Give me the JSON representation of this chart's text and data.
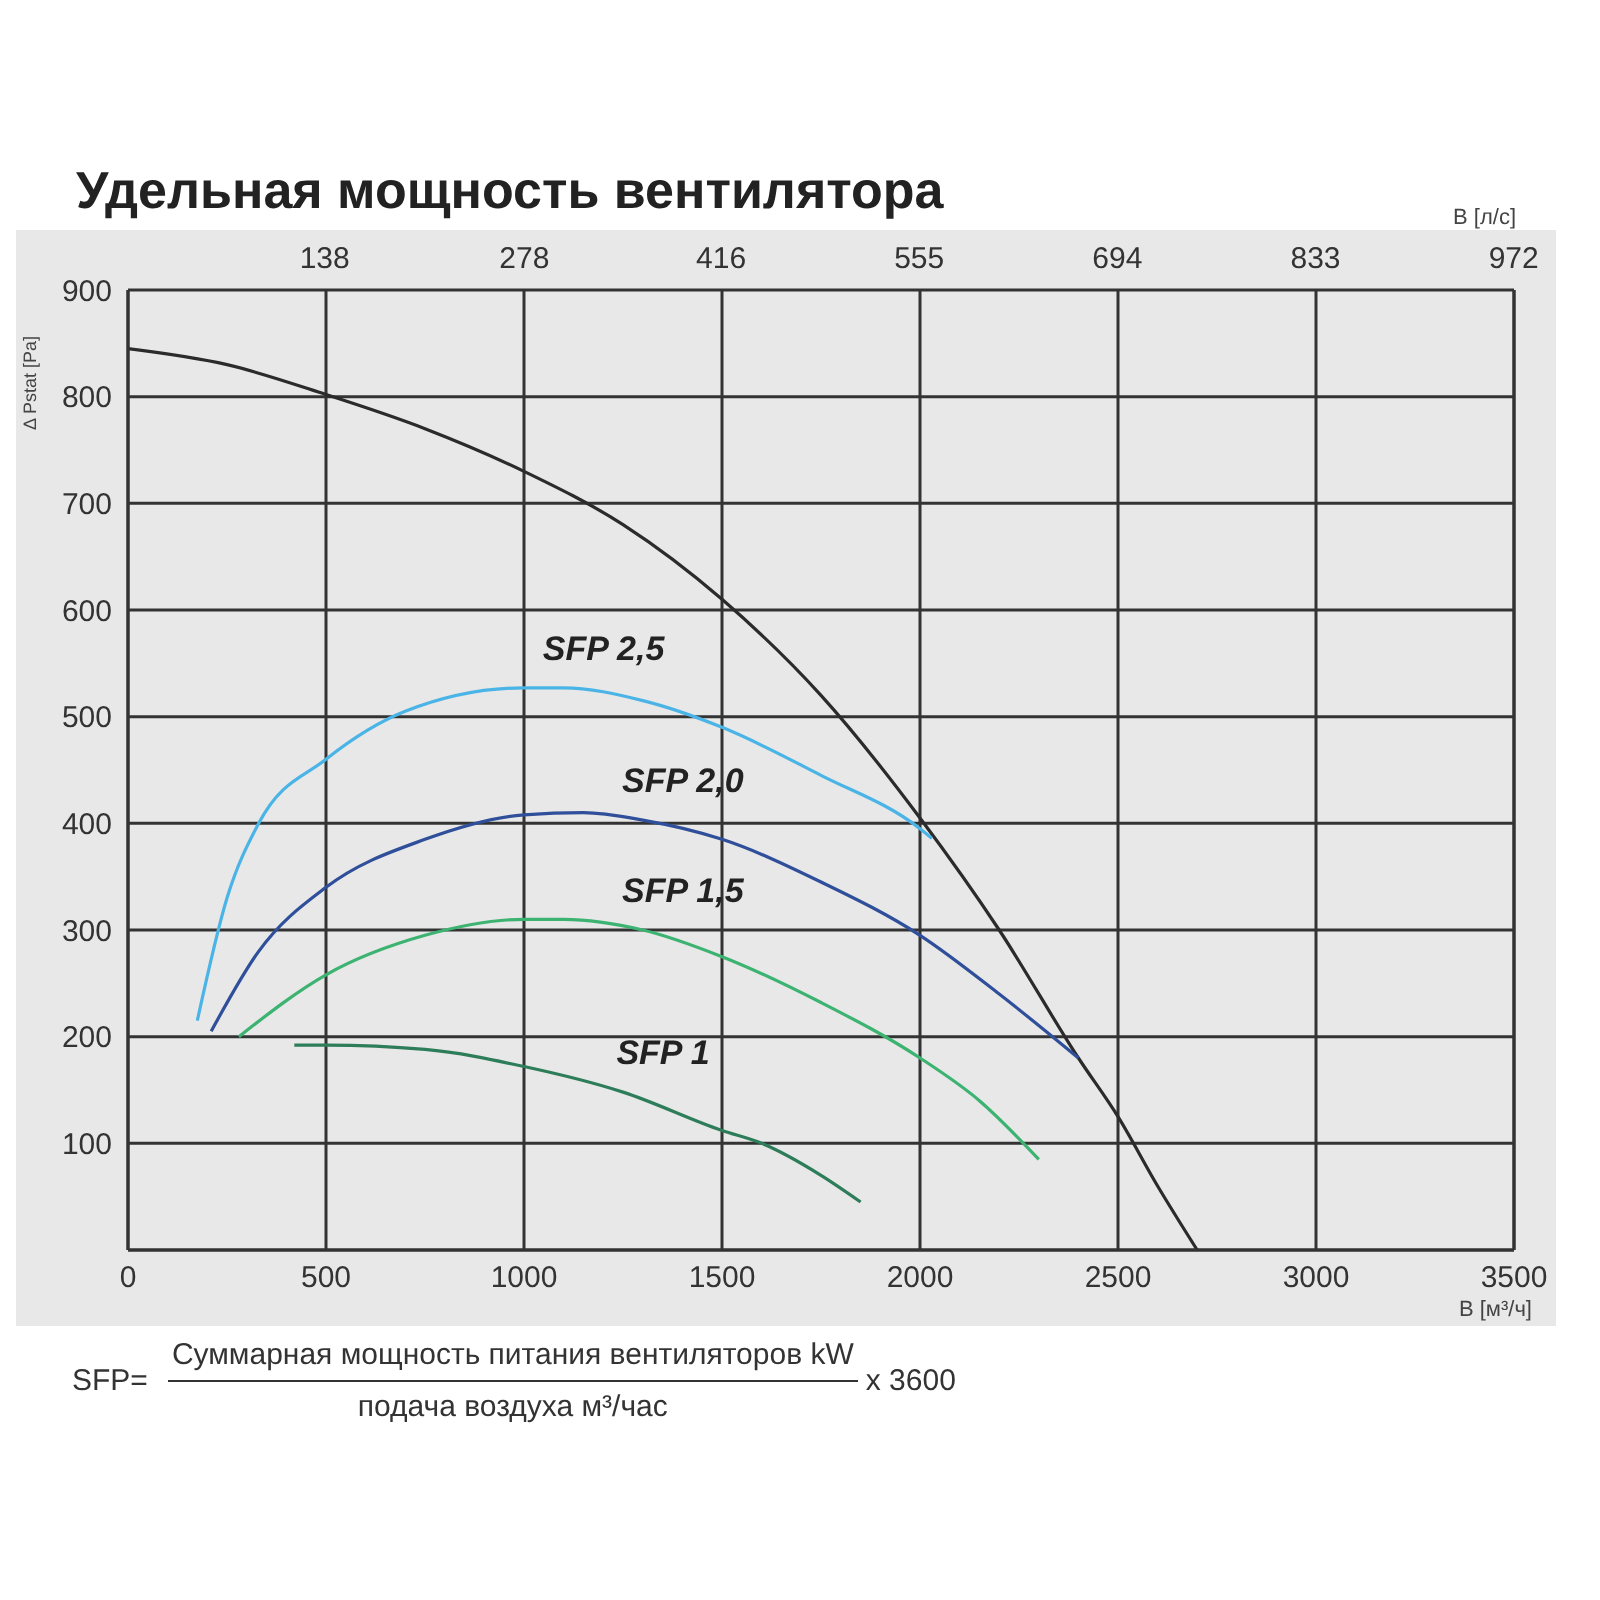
{
  "chart_data": {
    "type": "line",
    "title": "Удельная мощность вентилятора",
    "xlabel": "В [м³/ч]",
    "x2label": "В [л/с]",
    "ylabel": "Δ Pstat [Pa]",
    "xlim": [
      0,
      3500
    ],
    "xticks": [
      0,
      500,
      1000,
      1500,
      2000,
      2500,
      3000,
      3500
    ],
    "x2lim": [
      0,
      972.2
    ],
    "x2ticks": [
      138,
      278,
      416,
      555,
      694,
      833,
      972
    ],
    "ylim": [
      0,
      900
    ],
    "yticks": [
      100,
      200,
      300,
      400,
      500,
      600,
      700,
      800,
      900
    ],
    "grid": true,
    "legend": false,
    "marker": "none",
    "line_style": "solid",
    "series": [
      {
        "color": "#2b2b2b",
        "x": [
          0,
          250,
          500,
          750,
          1000,
          1250,
          1500,
          1750,
          2000,
          2200,
          2400,
          2500,
          2600,
          2700
        ],
        "values": [
          845,
          830,
          802,
          770,
          730,
          680,
          610,
          520,
          405,
          300,
          180,
          125,
          60,
          0
        ]
      },
      {
        "name": "SFP 2,5",
        "color": "#4bb4e6",
        "x": [
          175,
          250,
          330,
          500,
          700,
          1000,
          1100,
          1300,
          1500,
          1750,
          2000,
          2030
        ],
        "values": [
          215,
          330,
          400,
          460,
          505,
          527,
          527,
          515,
          490,
          445,
          395,
          386
        ]
      },
      {
        "name": "SFP 2,0",
        "color": "#2f4f9a",
        "x": [
          210,
          330,
          500,
          750,
          1000,
          1150,
          1300,
          1500,
          1750,
          2000,
          2200,
          2400
        ],
        "values": [
          205,
          280,
          340,
          385,
          408,
          410,
          403,
          385,
          345,
          295,
          240,
          180
        ]
      },
      {
        "name": "SFP 1,5",
        "color": "#3cb371",
        "x": [
          280,
          500,
          750,
          1000,
          1100,
          1300,
          1500,
          1750,
          2000,
          2150,
          2300
        ],
        "values": [
          200,
          258,
          295,
          310,
          310,
          300,
          275,
          232,
          180,
          140,
          85
        ]
      },
      {
        "name": "SFP 1",
        "color": "#2e7d5a",
        "x": [
          420,
          500,
          750,
          1000,
          1250,
          1500,
          1600,
          1750,
          1850
        ],
        "values": [
          192,
          192,
          188,
          172,
          148,
          112,
          100,
          70,
          45
        ]
      }
    ],
    "annotations": [
      "SFP=",
      "Суммарная мощность питания вентиляторов kW",
      "подача воздуха м³/час",
      "x 3600"
    ]
  }
}
